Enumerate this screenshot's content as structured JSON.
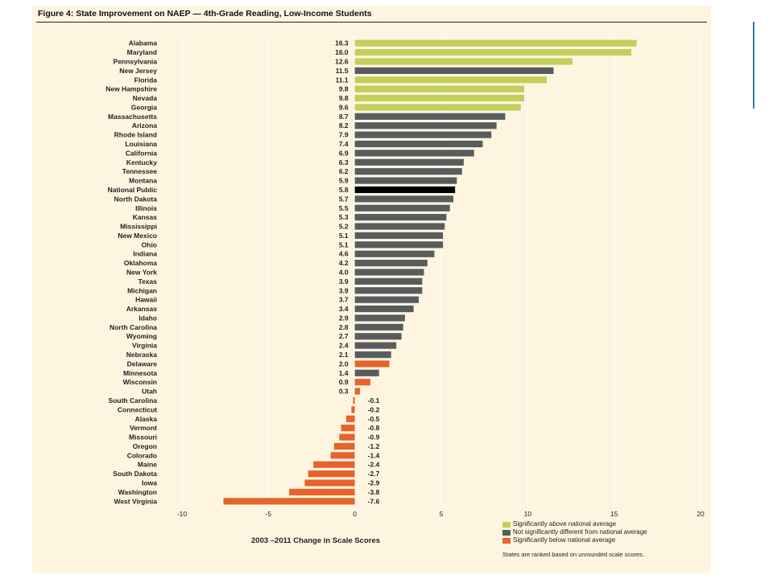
{
  "figure": {
    "title": "Figure 4: State Improvement on NAEP — 4th-Grade Reading, Low-Income Students",
    "xlabel": "2003 –2011 Change in Scale Scores",
    "footnote": "States are ranked based on unrounded scale scores."
  },
  "colors": {
    "above": "#c3cf5c",
    "not_significant": "#595c5e",
    "below": "#e8632b",
    "national": "#000000",
    "panel_background": "#fdf5e0",
    "gridline": "#ffffff"
  },
  "legend": [
    {
      "key": "above",
      "label": "Significantly above national average"
    },
    {
      "key": "not_significant",
      "label": "Not significantly different from national average"
    },
    {
      "key": "below",
      "label": "Significantly below national average"
    }
  ],
  "chart_data": {
    "type": "bar",
    "orientation": "horizontal",
    "title": "Figure 4: State Improvement on NAEP — 4th-Grade Reading, Low-Income Students",
    "xlabel": "2003 –2011 Change in Scale Scores",
    "ylabel": "",
    "xlim": [
      -10,
      20
    ],
    "xticks": [
      -10,
      -5,
      0,
      5,
      10,
      15,
      20
    ],
    "grid": true,
    "legend_position": "bottom-right",
    "categories": [
      "Alabama",
      "Maryland",
      "Pennsylvania",
      "New Jersey",
      "Florida",
      "New Hampshire",
      "Nevada",
      "Georgia",
      "Massachusetts",
      "Arizona",
      "Rhode Island",
      "Louisiana",
      "California",
      "Kentucky",
      "Tennessee",
      "Montana",
      "National Public",
      "North Dakota",
      "Illinois",
      "Kansas",
      "Mississippi",
      "New Mexico",
      "Ohio",
      "Indiana",
      "Oklahoma",
      "New York",
      "Texas",
      "Michigan",
      "Hawaii",
      "Arkansas",
      "Idaho",
      "North Carolina",
      "Wyoming",
      "Virginia",
      "Nebraska",
      "Delaware",
      "Minnesota",
      "Wisconsin",
      "Utah",
      "South Carolina",
      "Connecticut",
      "Alaska",
      "Vermont",
      "Missouri",
      "Oregon",
      "Colorado",
      "Maine",
      "South Dakota",
      "Iowa",
      "Washington",
      "West Virginia"
    ],
    "values": [
      16.3,
      16.0,
      12.6,
      11.5,
      11.1,
      9.8,
      9.8,
      9.6,
      8.7,
      8.2,
      7.9,
      7.4,
      6.9,
      6.3,
      6.2,
      5.9,
      5.8,
      5.7,
      5.5,
      5.3,
      5.2,
      5.1,
      5.1,
      4.6,
      4.2,
      4.0,
      3.9,
      3.9,
      3.7,
      3.4,
      2.9,
      2.8,
      2.7,
      2.4,
      2.1,
      2.0,
      1.4,
      0.9,
      0.3,
      -0.1,
      -0.2,
      -0.5,
      -0.8,
      -0.9,
      -1.2,
      -1.4,
      -2.4,
      -2.7,
      -2.9,
      -3.8,
      -7.6
    ],
    "value_labels": [
      "16.3",
      "16.0",
      "12.6",
      "11.5",
      "11.1",
      "9.8",
      "9.8",
      "9.6",
      "8.7",
      "8.2",
      "7.9",
      "7.4",
      "6.9",
      "6.3",
      "6.2",
      "5.9",
      "5.8",
      "5.7",
      "5.5",
      "5.3",
      "5.2",
      "5.1",
      "5.1",
      "4.6",
      "4.2",
      "4.0",
      "3.9",
      "3.9",
      "3.7",
      "3.4",
      "2.9",
      "2.8",
      "2.7",
      "2.4",
      "2.1",
      "2.0",
      "1.4",
      "0.9",
      "0.3",
      "-0.1",
      "-0.2",
      "-0.5",
      "-0.8",
      "-0.9",
      "-1.2",
      "-1.4",
      "-2.4",
      "-2.7",
      "-2.9",
      "-3.8",
      "-7.6"
    ],
    "significance": [
      "above",
      "above",
      "above",
      "not_significant",
      "above",
      "above",
      "above",
      "above",
      "not_significant",
      "not_significant",
      "not_significant",
      "not_significant",
      "not_significant",
      "not_significant",
      "not_significant",
      "not_significant",
      "national",
      "not_significant",
      "not_significant",
      "not_significant",
      "not_significant",
      "not_significant",
      "not_significant",
      "not_significant",
      "not_significant",
      "not_significant",
      "not_significant",
      "not_significant",
      "not_significant",
      "not_significant",
      "not_significant",
      "not_significant",
      "not_significant",
      "not_significant",
      "not_significant",
      "below",
      "not_significant",
      "below",
      "below",
      "below",
      "below",
      "below",
      "below",
      "below",
      "below",
      "below",
      "below",
      "below",
      "below",
      "below",
      "below"
    ]
  }
}
